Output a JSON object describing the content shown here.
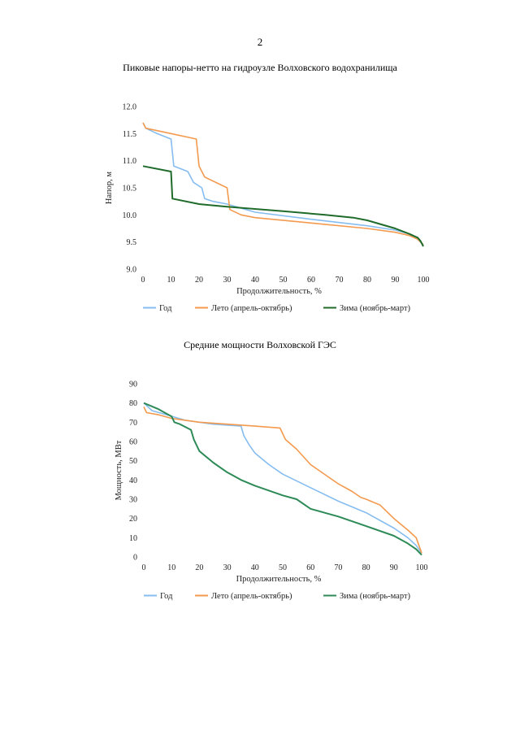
{
  "page_number": "2",
  "colors": {
    "year": "#86bdf0",
    "summer": "#f39a4f",
    "winter_1": "#1f6b2b",
    "winter_2": "#2e8b57"
  },
  "chart_data": [
    {
      "type": "line",
      "title": "Пиковые напоры-нетто на гидроузле Волховского водохранилища",
      "xlabel": "Продолжительность, %",
      "ylabel": "Напор, м",
      "xlim": [
        0,
        100
      ],
      "ylim": [
        9.0,
        12.0
      ],
      "x_ticks": [
        "0",
        "10",
        "20",
        "30",
        "40",
        "50",
        "60",
        "70",
        "80",
        "90",
        "100"
      ],
      "y_ticks": [
        "12.0",
        "11.5",
        "11.0",
        "10.5",
        "10.0",
        "9.5",
        "9.0"
      ],
      "legend_position": "bottom",
      "series": [
        {
          "name": "Год",
          "color": "#86bdf0",
          "x": [
            0,
            1,
            5,
            10,
            11,
            16,
            18,
            21,
            22,
            25,
            30,
            40,
            60,
            80,
            90,
            95,
            98,
            100
          ],
          "y": [
            11.7,
            11.6,
            11.5,
            11.4,
            10.9,
            10.8,
            10.6,
            10.5,
            10.3,
            10.25,
            10.2,
            10.05,
            9.92,
            9.8,
            9.72,
            9.65,
            9.55,
            9.45
          ]
        },
        {
          "name": "Лето (апрель-октябрь)",
          "color": "#f39a4f",
          "x": [
            0,
            1,
            10,
            19,
            20,
            22,
            30,
            31,
            35,
            40,
            60,
            80,
            90,
            95,
            98,
            100
          ],
          "y": [
            11.7,
            11.6,
            11.5,
            11.4,
            10.9,
            10.7,
            10.5,
            10.1,
            10.0,
            9.95,
            9.85,
            9.75,
            9.68,
            9.62,
            9.55,
            9.45
          ]
        },
        {
          "name": "Зима (ноябрь-март)",
          "color": "#1f6b2b",
          "x": [
            0,
            10,
            10.5,
            20,
            30,
            50,
            65,
            75,
            80,
            90,
            95,
            98,
            99,
            100
          ],
          "y": [
            10.9,
            10.8,
            10.3,
            10.2,
            10.15,
            10.07,
            10.0,
            9.95,
            9.9,
            9.75,
            9.65,
            9.58,
            9.52,
            9.42
          ]
        }
      ]
    },
    {
      "type": "line",
      "title": "Средние мощности Волховской ГЭС",
      "xlabel": "Продолжительность, %",
      "ylabel": "Мощность, МВт",
      "xlim": [
        0,
        100
      ],
      "ylim": [
        0,
        90
      ],
      "x_ticks": [
        "0",
        "10",
        "20",
        "30",
        "40",
        "50",
        "60",
        "70",
        "80",
        "90",
        "100"
      ],
      "y_ticks": [
        "90",
        "80",
        "70",
        "60",
        "50",
        "40",
        "30",
        "20",
        "10",
        "0"
      ],
      "legend_position": "bottom",
      "series": [
        {
          "name": "Год",
          "color": "#86bdf0",
          "x": [
            0,
            3,
            8,
            15,
            25,
            35,
            36,
            38,
            40,
            45,
            50,
            60,
            70,
            80,
            90,
            95,
            98,
            100
          ],
          "y": [
            80,
            76,
            74,
            71,
            69,
            68,
            63,
            58,
            54,
            48,
            43,
            36,
            29,
            23,
            15,
            10,
            6,
            2
          ]
        },
        {
          "name": "Лето (апрель-октябрь)",
          "color": "#f39a4f",
          "x": [
            0,
            1,
            5,
            10,
            20,
            30,
            40,
            49,
            51,
            55,
            60,
            70,
            75,
            78,
            80,
            85,
            90,
            95,
            98,
            100
          ],
          "y": [
            78,
            75,
            74,
            72,
            70,
            69,
            68,
            67,
            61,
            56,
            48,
            38,
            34,
            31,
            30,
            27,
            20,
            14,
            10,
            2
          ]
        },
        {
          "name": "Зима (ноябрь-март)",
          "color": "#2e8b57",
          "x": [
            0,
            5,
            10,
            11,
            13,
            17,
            18,
            20,
            25,
            30,
            35,
            40,
            50,
            55,
            60,
            70,
            80,
            90,
            95,
            98,
            100
          ],
          "y": [
            80,
            77,
            73,
            70,
            69,
            66,
            61,
            55,
            49,
            44,
            40,
            37,
            32,
            30,
            25,
            21,
            16,
            11,
            7,
            4,
            1
          ]
        }
      ]
    }
  ]
}
